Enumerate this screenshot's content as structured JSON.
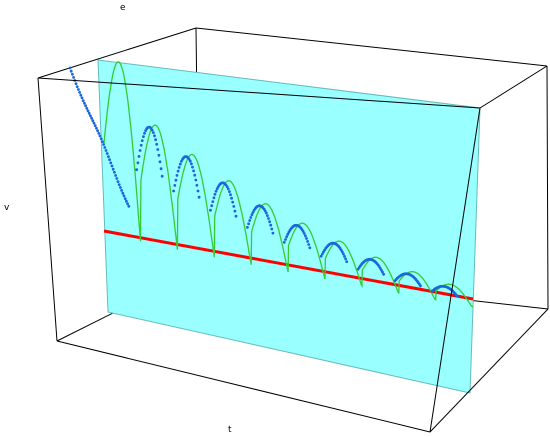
{
  "chart_data": {
    "type": "line",
    "projection": "3d-box",
    "title": "",
    "axes": {
      "x_label": "t",
      "y_label": "v",
      "z_label": "e"
    },
    "box": {
      "color": "#000000"
    },
    "plane": {
      "color": "#00ffff"
    },
    "series": [
      {
        "role": "model-curve",
        "color": "#33cc33",
        "shape": "damped bouncing oscillation",
        "peaks": [
          1.0,
          0.68,
          0.55,
          0.44,
          0.35,
          0.28,
          0.22,
          0.17,
          0.13,
          0.1
        ]
      },
      {
        "role": "measured-points",
        "color": "#1a66dd",
        "shape": "scattered points along the upper part of each arch"
      },
      {
        "role": "reference-line",
        "color": "#ff0000",
        "shape": "straight declining line"
      }
    ]
  }
}
